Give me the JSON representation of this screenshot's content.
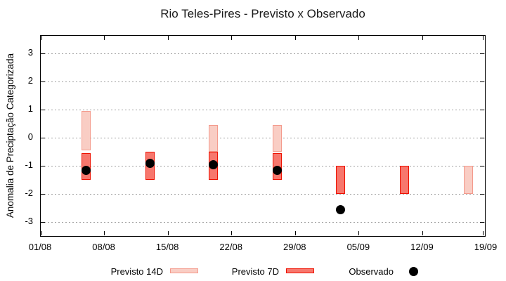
{
  "title": "Rio Teles-Pires - Previsto x Observado",
  "axes": {
    "y_label": "Anomalia de Preciptação Categorizada",
    "y_ticks": [
      "3",
      "2",
      "1",
      "0",
      "-1",
      "-2",
      "-3"
    ],
    "x_tick_labels": [
      "01/08",
      "08/08",
      "15/08",
      "22/08",
      "29/08",
      "05/09",
      "12/09",
      "19/09"
    ]
  },
  "legend": {
    "previsto14_label": "Previsto 14D",
    "previsto7_label": "Previsto 7D",
    "observado_label": "Observado"
  },
  "colors": {
    "p14_fill": "#f9cdc4",
    "p14_border": "#f49a8c",
    "p7_fill": "#f7776d",
    "p7_border": "#ee1100",
    "observed": "#000000",
    "grid": "#a0a0a0",
    "axis": "#000000"
  },
  "chart_data": {
    "type": "bar",
    "subtype": "weekly range-bars with scatter overlay",
    "title": "Rio Teles-Pires - Previsto x Observado",
    "xlabel": "",
    "ylabel": "Anomalia de Preciptação Categorizada",
    "ylim": [
      -3.55,
      3.6
    ],
    "grid": "horizontal-dotted",
    "legend_position": "below",
    "x_tick_labels": [
      "01/08",
      "08/08",
      "15/08",
      "22/08",
      "29/08",
      "05/09",
      "12/09",
      "19/09"
    ],
    "x_tick_days": [
      0,
      7,
      14,
      21,
      28,
      35,
      42,
      49
    ],
    "categories": [
      "06/08",
      "13/08",
      "20/08",
      "27/08",
      "03/09",
      "10/09",
      "17/09"
    ],
    "day_offsets": [
      5,
      12,
      19,
      26,
      33,
      40,
      47
    ],
    "series": [
      {
        "name": "Previsto 14D",
        "type": "range-bar",
        "ranges": [
          [
            -0.45,
            0.95
          ],
          null,
          [
            -0.5,
            0.45
          ],
          [
            -0.5,
            0.45
          ],
          null,
          null,
          [
            -2.0,
            -1.0
          ]
        ]
      },
      {
        "name": "Previsto 7D",
        "type": "range-bar",
        "ranges": [
          [
            -1.5,
            -0.55
          ],
          [
            -1.5,
            -0.5
          ],
          [
            -1.5,
            -0.5
          ],
          [
            -1.5,
            -0.55
          ],
          [
            -2.0,
            -1.0
          ],
          [
            -2.0,
            -1.0
          ],
          null
        ]
      },
      {
        "name": "Observado",
        "type": "scatter",
        "values": [
          -1.15,
          -0.9,
          -0.95,
          -1.15,
          -2.55,
          null,
          null
        ]
      }
    ]
  }
}
